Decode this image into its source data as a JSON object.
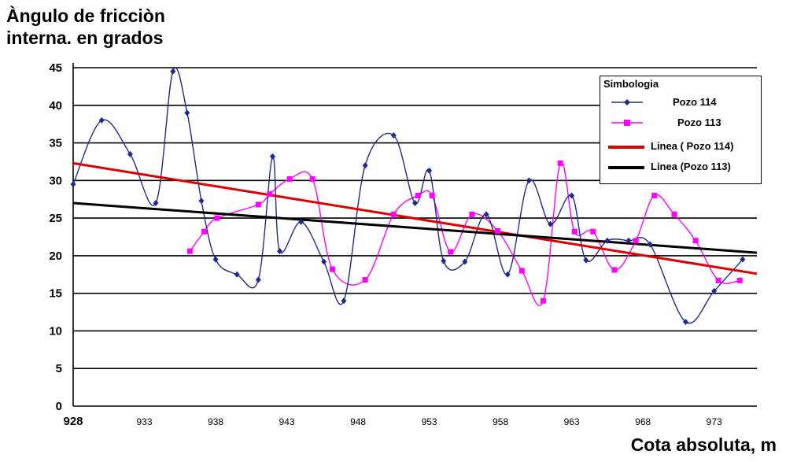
{
  "chart_data": {
    "type": "line",
    "ylabel_line1": "Àngulo de fricciòn",
    "ylabel_line2": "interna. en grados",
    "xlabel": "Cota absoluta, m",
    "xlim": [
      928,
      976
    ],
    "ylim": [
      0,
      45
    ],
    "x_ticks": [
      928,
      933,
      938,
      943,
      948,
      953,
      958,
      963,
      968,
      973
    ],
    "y_ticks": [
      0,
      5,
      10,
      15,
      20,
      25,
      30,
      35,
      40,
      45
    ],
    "grid": "horizontal",
    "legend": {
      "title": "Simbologia",
      "placement": "top-right",
      "entries": [
        "Pozo 114",
        "Pozo 113",
        "Linea ( Pozo 114)",
        "Linea (Pozo 113)"
      ]
    },
    "series": [
      {
        "name": "Pozo 114",
        "color": "#1f2a8c",
        "marker": "diamond",
        "x": [
          928,
          930,
          932,
          933.8,
          935,
          936,
          937,
          938,
          939.5,
          941,
          942,
          942.5,
          944,
          945.6,
          947,
          948.5,
          950.5,
          952,
          953,
          954,
          955.5,
          957,
          958.5,
          960,
          961.5,
          963,
          964,
          965.5,
          967,
          968.5,
          971,
          973,
          975
        ],
        "y": [
          29.5,
          38,
          33.5,
          27,
          44.5,
          39,
          27.3,
          19.5,
          17.5,
          16.8,
          33.2,
          20.6,
          24.5,
          19.2,
          14,
          32,
          36,
          27,
          31.3,
          19.3,
          19.2,
          25.5,
          17.5,
          30,
          24.2,
          28,
          19.4,
          22,
          22,
          21.5,
          11.2,
          15.3,
          19.5
        ]
      },
      {
        "name": "Pozo 113",
        "color": "#ff00ff",
        "marker": "square",
        "x": [
          936.2,
          937.2,
          938.1,
          941,
          941.8,
          943.2,
          944.8,
          946.2,
          948.5,
          950.5,
          952.2,
          953.2,
          954.5,
          956,
          957.8,
          959.5,
          961,
          962.2,
          963.2,
          964.5,
          966,
          967.5,
          968.8,
          970.2,
          971.7,
          973.3,
          974.8
        ],
        "y": [
          20.6,
          23.2,
          25,
          26.8,
          28.2,
          30.2,
          30.2,
          18.2,
          16.8,
          25.5,
          28,
          28,
          20.5,
          25.5,
          23.3,
          18,
          14,
          32.3,
          23.2,
          23.2,
          18.1,
          22,
          28,
          25.5,
          22,
          16.7,
          16.7
        ]
      }
    ],
    "trendlines": [
      {
        "name": "Linea ( Pozo 114)",
        "color": "#e00000",
        "x": [
          928,
          976
        ],
        "y": [
          32.3,
          17.6
        ]
      },
      {
        "name": "Linea (Pozo 113)",
        "color": "#000000",
        "x": [
          928,
          976
        ],
        "y": [
          27,
          20.4
        ]
      }
    ]
  }
}
